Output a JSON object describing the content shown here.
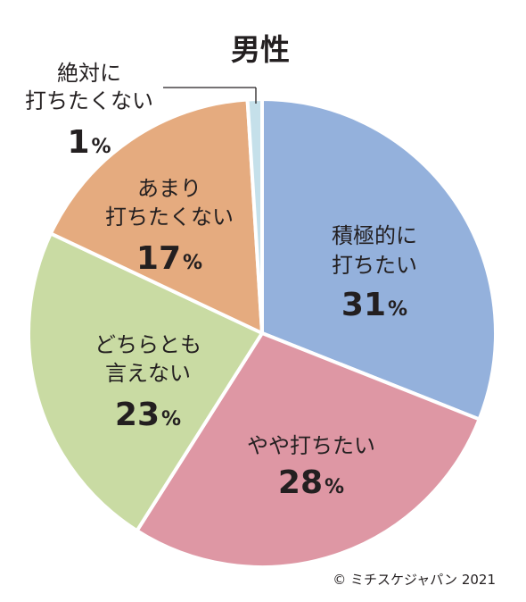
{
  "chart_data": {
    "type": "pie",
    "title": "男性",
    "start_angle_deg": 0,
    "direction": "clockwise",
    "slices": [
      {
        "label_lines": [
          "積極的に",
          "打ちたい"
        ],
        "value": 31,
        "color": "#94b1dc"
      },
      {
        "label_lines": [
          "やや打ちたい"
        ],
        "value": 28,
        "color": "#de97a4"
      },
      {
        "label_lines": [
          "どちらとも",
          "言えない"
        ],
        "value": 23,
        "color": "#c9dba3"
      },
      {
        "label_lines": [
          "あまり",
          "打ちたくない"
        ],
        "value": 17,
        "color": "#e5ab7f"
      },
      {
        "label_lines": [
          "絶対に",
          "打ちたくない"
        ],
        "value": 1,
        "color": "#c5e0ea"
      }
    ],
    "percent_sign": "%",
    "separator_color": "#ffffff"
  },
  "credit": "© ミチスケジャパン 2021"
}
